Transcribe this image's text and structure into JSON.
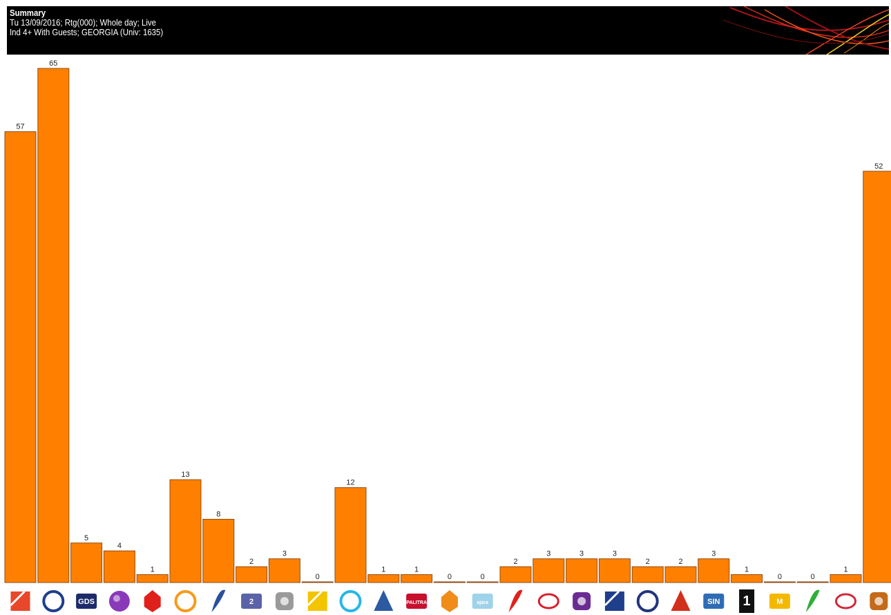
{
  "header": {
    "title": "Summary",
    "line2": "Tu 13/09/2016; Rtg(000); Whole day; Live",
    "line3": "Ind 4+ With Guests; GEORGIA (Univ: 1635)"
  },
  "colors": {
    "bar": "#ff8000",
    "bar_border": "#8c4b12",
    "header_bg": "#000000"
  },
  "chart_data": {
    "type": "bar",
    "title": "Summary",
    "categories": [
      "channel-1",
      "channel-2",
      "channel-3",
      "channel-4",
      "channel-5",
      "channel-6",
      "channel-7",
      "channel-8",
      "channel-9",
      "channel-10",
      "channel-11",
      "channel-12",
      "channel-13",
      "channel-14",
      "channel-15",
      "channel-16",
      "channel-17",
      "channel-18",
      "channel-19",
      "channel-20",
      "channel-21",
      "channel-22",
      "channel-23",
      "channel-24",
      "channel-25",
      "channel-26",
      "channel-27"
    ],
    "values": [
      57,
      65,
      5,
      4,
      1,
      13,
      8,
      2,
      3,
      0,
      12,
      1,
      1,
      0,
      0,
      2,
      3,
      3,
      3,
      2,
      2,
      3,
      1,
      0,
      0,
      1,
      52
    ],
    "ylim": [
      0,
      65
    ],
    "grid": false,
    "legend": "none",
    "xlabel": "",
    "ylabel": ""
  },
  "logos": [
    {
      "icon": "red-diagonal-logo-icon",
      "color": "#e8472a"
    },
    {
      "icon": "e-circle-logo-icon",
      "color": "#1f3e8c"
    },
    {
      "icon": "gds-logo-icon",
      "color": "#1d2b6b",
      "text": "GDS"
    },
    {
      "icon": "purple-fan-logo-icon",
      "color": "#8a3ab9"
    },
    {
      "icon": "red-power-logo-icon",
      "color": "#e0201b"
    },
    {
      "icon": "orange-cube-logo-icon",
      "color": "#f59b1a"
    },
    {
      "icon": "blue-feather-logo-icon",
      "color": "#2a4f9c"
    },
    {
      "icon": "square-two-logo-icon",
      "color": "#5b63a8",
      "text": "2"
    },
    {
      "icon": "crescent-logo-icon",
      "color": "#9a9a9a"
    },
    {
      "icon": "yellow-black-logo-icon",
      "color": "#f2c500"
    },
    {
      "icon": "cyan-oval-logo-icon",
      "color": "#29b6e8"
    },
    {
      "icon": "globe-logo-icon",
      "color": "#2c5aa0"
    },
    {
      "icon": "palitra-news-logo-icon",
      "color": "#c8102e",
      "text": "PALITRA"
    },
    {
      "icon": "orange-badge-logo-icon",
      "color": "#f08c1a"
    },
    {
      "icon": "faint-text-logo-icon",
      "color": "#9fd3ea",
      "text": "ajara"
    },
    {
      "icon": "red-signal-logo-icon",
      "color": "#e0201b"
    },
    {
      "icon": "red-swirl-logo-icon",
      "color": "#d81e2c"
    },
    {
      "icon": "purple-bar-logo-icon",
      "color": "#6a2c91"
    },
    {
      "icon": "blue-ball-logo-icon",
      "color": "#1f3e8c"
    },
    {
      "icon": "blue-ring-logo-icon",
      "color": "#22357e"
    },
    {
      "icon": "red-yellow-emblem-logo-icon",
      "color": "#d22f1c"
    },
    {
      "icon": "blue-box-logo-icon",
      "color": "#2f6cb5",
      "text": "SIN"
    },
    {
      "icon": "black-one-logo-icon",
      "color": "#111111",
      "text": "1"
    },
    {
      "icon": "yellow-tv-logo-icon",
      "color": "#f5b800",
      "text": "M"
    },
    {
      "icon": "green-pulse-logo-icon",
      "color": "#2fae3a"
    },
    {
      "icon": "star-map-logo-icon",
      "color": "#d0263a"
    },
    {
      "icon": "tv-set-logo-icon",
      "color": "#c46a1a"
    }
  ]
}
